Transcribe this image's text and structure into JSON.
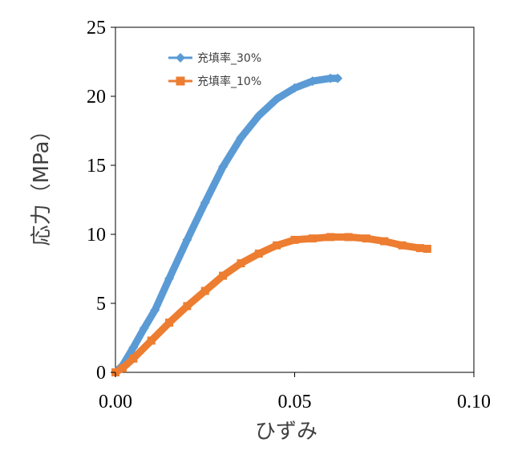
{
  "chart_data": {
    "type": "line",
    "xlabel": "ひずみ",
    "ylabel": "応力（MPa）",
    "xlim": [
      0,
      0.1
    ],
    "ylim": [
      0,
      25
    ],
    "xticks": [
      "0.00",
      "0.05",
      "0.10"
    ],
    "yticks": [
      "0",
      "5",
      "10",
      "15",
      "20",
      "25"
    ],
    "grid": false,
    "legend": "top-left",
    "series": [
      {
        "name": "充填率_30%",
        "color": "#5B9BD5",
        "marker": "diamond",
        "x": [
          0,
          0.002,
          0.005,
          0.008,
          0.011,
          0.015,
          0.02,
          0.025,
          0.03,
          0.035,
          0.04,
          0.045,
          0.05,
          0.055,
          0.06,
          0.062
        ],
        "y": [
          0,
          0.5,
          1.8,
          3.2,
          4.5,
          6.8,
          9.6,
          12.3,
          14.9,
          17.0,
          18.6,
          19.8,
          20.6,
          21.1,
          21.3,
          21.3
        ]
      },
      {
        "name": "充填率_10%",
        "color": "#ED7D31",
        "marker": "square",
        "x": [
          0,
          0.002,
          0.005,
          0.01,
          0.015,
          0.02,
          0.025,
          0.03,
          0.035,
          0.04,
          0.045,
          0.05,
          0.055,
          0.06,
          0.065,
          0.07,
          0.075,
          0.08,
          0.085,
          0.087
        ],
        "y": [
          0,
          0.3,
          1.0,
          2.3,
          3.6,
          4.8,
          5.9,
          7.0,
          7.9,
          8.6,
          9.2,
          9.6,
          9.7,
          9.8,
          9.8,
          9.7,
          9.5,
          9.2,
          9.0,
          8.95
        ]
      }
    ]
  }
}
